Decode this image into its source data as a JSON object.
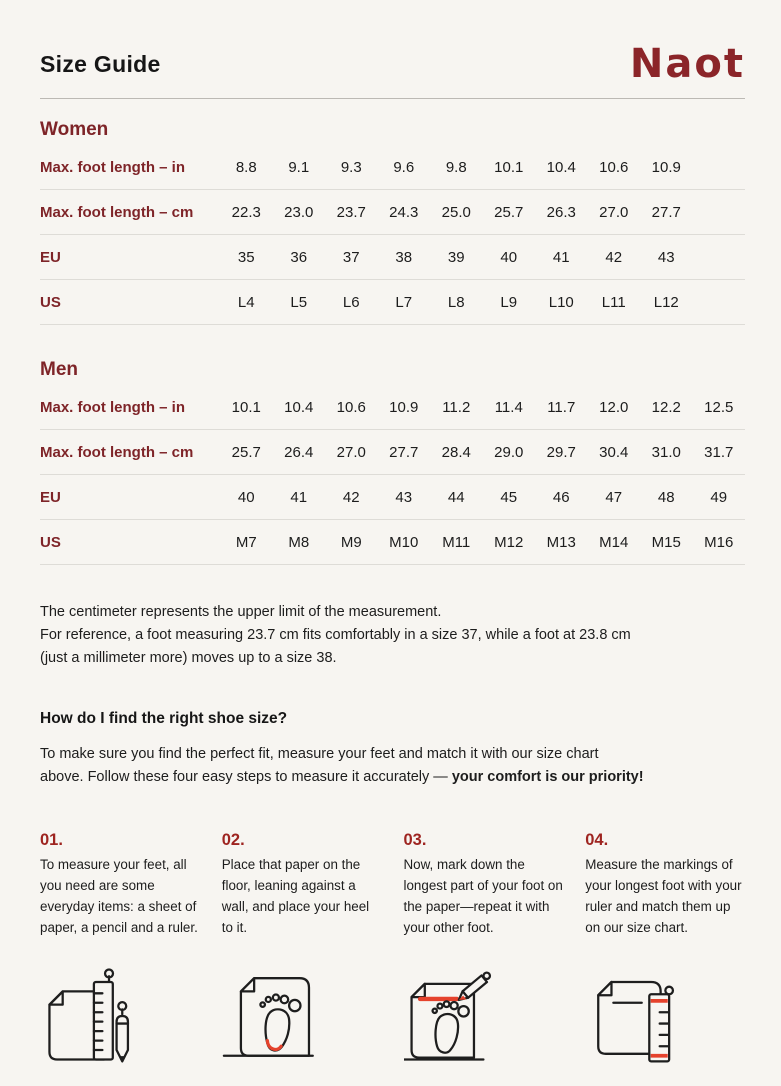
{
  "page": {
    "title": "Size Guide",
    "brand": "Naot"
  },
  "colors": {
    "background": "#f7f5f1",
    "brand_red": "#8b2529",
    "label_red": "#7e2428",
    "step_number_red": "#9e2420",
    "accent_red": "#e5422c",
    "text": "#1d1d1d",
    "header_divider": "#bcb9b4",
    "row_divider": "#dedcd7"
  },
  "table_columns": 10,
  "women": {
    "heading": "Women",
    "rows": [
      {
        "label": "Max. foot length – in",
        "values": [
          "8.8",
          "9.1",
          "9.3",
          "9.6",
          "9.8",
          "10.1",
          "10.4",
          "10.6",
          "10.9"
        ]
      },
      {
        "label": "Max. foot length – cm",
        "values": [
          "22.3",
          "23.0",
          "23.7",
          "24.3",
          "25.0",
          "25.7",
          "26.3",
          "27.0",
          "27.7"
        ]
      },
      {
        "label": "EU",
        "values": [
          "35",
          "36",
          "37",
          "38",
          "39",
          "40",
          "41",
          "42",
          "43"
        ]
      },
      {
        "label": "US",
        "values": [
          "L4",
          "L5",
          "L6",
          "L7",
          "L8",
          "L9",
          "L10",
          "L11",
          "L12"
        ]
      }
    ]
  },
  "men": {
    "heading": "Men",
    "rows": [
      {
        "label": "Max. foot length – in",
        "values": [
          "10.1",
          "10.4",
          "10.6",
          "10.9",
          "11.2",
          "11.4",
          "11.7",
          "12.0",
          "12.2",
          "12.5"
        ]
      },
      {
        "label": "Max. foot length – cm",
        "values": [
          "25.7",
          "26.4",
          "27.0",
          "27.7",
          "28.4",
          "29.0",
          "29.7",
          "30.4",
          "31.0",
          "31.7"
        ]
      },
      {
        "label": "EU",
        "values": [
          "40",
          "41",
          "42",
          "43",
          "44",
          "45",
          "46",
          "47",
          "48",
          "49"
        ]
      },
      {
        "label": "US",
        "values": [
          "M7",
          "M8",
          "M9",
          "M10",
          "M11",
          "M12",
          "M13",
          "M14",
          "M15",
          "M16"
        ]
      }
    ]
  },
  "note": {
    "lines": [
      "The centimeter represents the upper limit of the measurement.",
      "For reference, a foot measuring 23.7 cm fits comfortably in a size 37, while a foot at 23.8 cm",
      "(just a millimeter more) moves up to a size 38."
    ]
  },
  "how_to": {
    "heading": "How do I find the right shoe size?",
    "intro_line1": "To make sure you find the perfect fit, measure your feet and match it with our size chart",
    "intro_line2_regular": "above. Follow these four easy steps to measure it accurately — ",
    "intro_line2_bold": "your comfort is our priority!"
  },
  "steps": [
    {
      "number": "01.",
      "text": "To measure your feet, all you need are some everyday items: a sheet of paper, a pencil and a ruler.",
      "icon": "paper-pencil-ruler-icon"
    },
    {
      "number": "02.",
      "text": "Place that paper on the floor, leaning against a wall, and place your heel to it.",
      "icon": "paper-heel-wall-icon"
    },
    {
      "number": "03.",
      "text": "Now, mark down the longest part of your foot on the paper—repeat it with your other foot.",
      "icon": "mark-longest-part-icon"
    },
    {
      "number": "04.",
      "text": "Measure the markings of your longest foot with your ruler and match them up on our size chart.",
      "icon": "measure-marking-ruler-icon"
    }
  ]
}
